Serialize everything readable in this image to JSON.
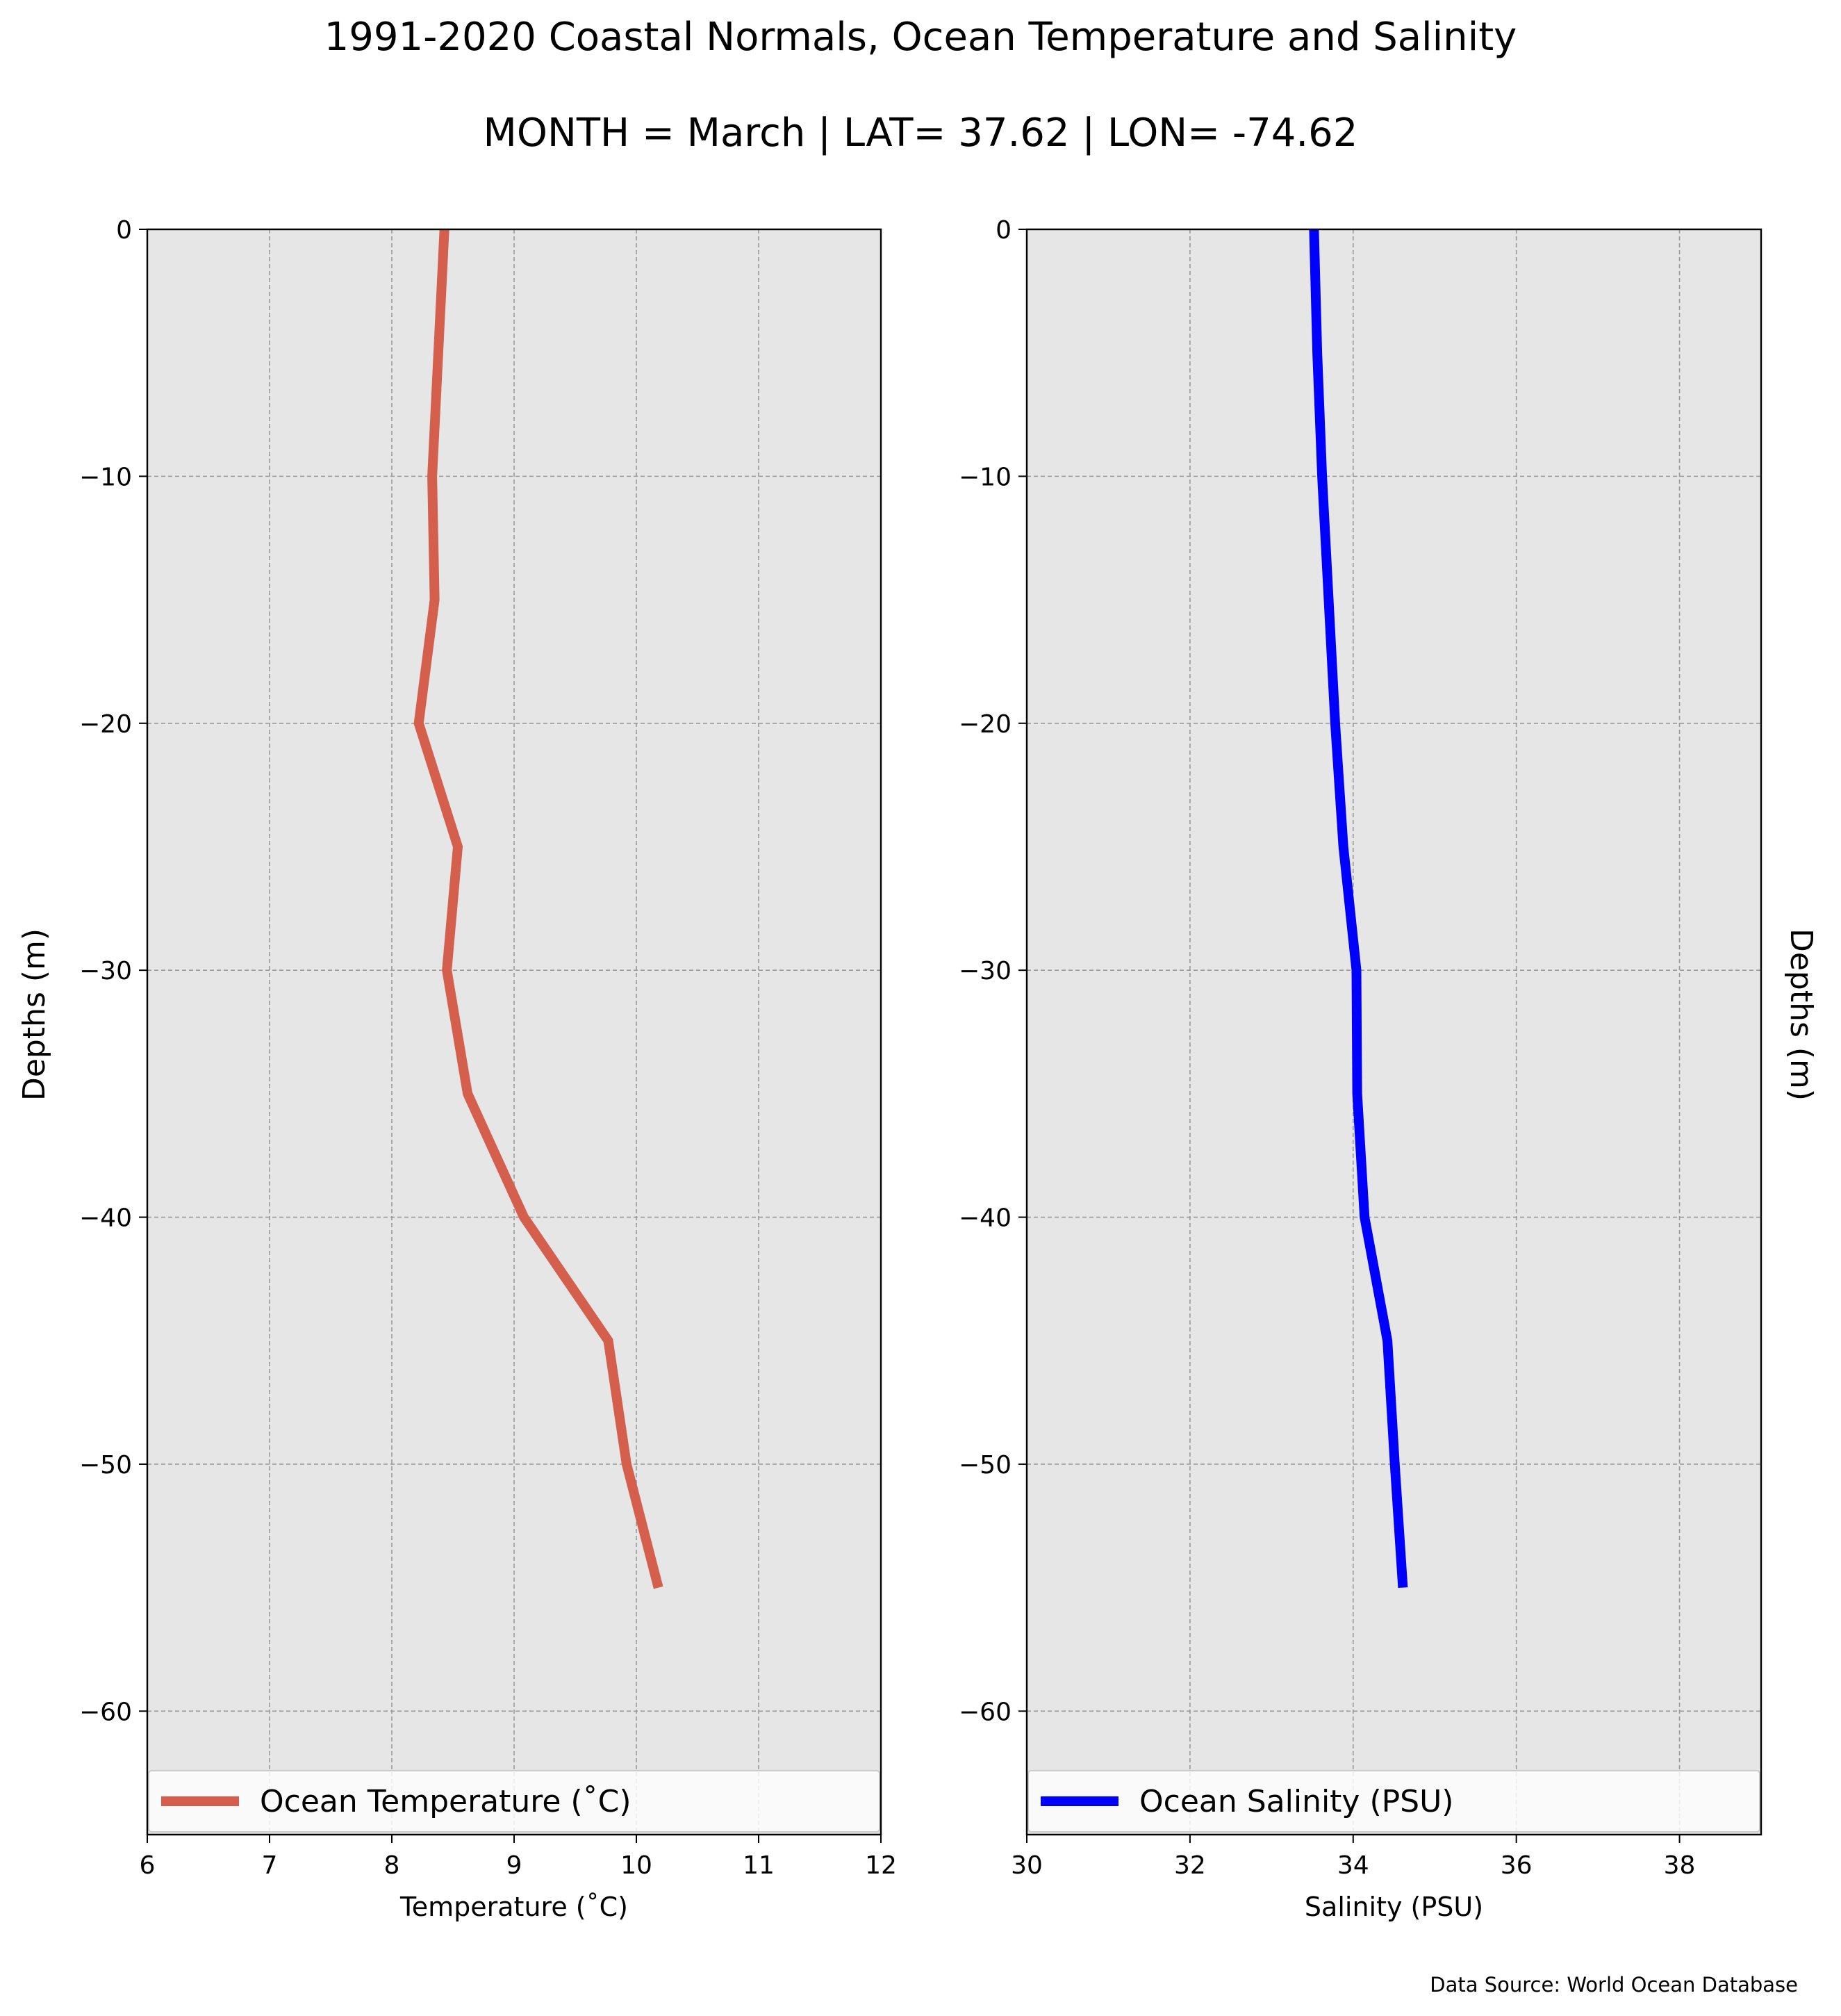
{
  "title": "1991-2020 Coastal Normals, Ocean Temperature and Salinity",
  "subtitle": "MONTH = March | LAT= 37.62 | LON= -74.62",
  "source": "Data Source: World Ocean Database",
  "colors": {
    "background": "#ffffff",
    "panel": "#e6e6e6",
    "grid": "#999999",
    "temperature": "#d45f4d",
    "salinity": "#0000ff"
  },
  "chart_data": [
    {
      "type": "line",
      "title": "",
      "xlabel": "Temperature ($^\\circ$C)",
      "ylabel": "Depths (m)",
      "xlim": [
        6,
        12
      ],
      "ylim": [
        -65,
        0
      ],
      "xticks": [
        6,
        7,
        8,
        9,
        10,
        11,
        12
      ],
      "yticks": [
        0,
        -10,
        -20,
        -30,
        -40,
        -50,
        -60
      ],
      "xtick_labels": [
        "6",
        "7",
        "8",
        "9",
        "10",
        "11",
        "12"
      ],
      "ytick_labels": [
        "0",
        "−10",
        "−20",
        "−30",
        "−40",
        "−50",
        "−60"
      ],
      "grid": true,
      "legend_position": "bottom",
      "series": [
        {
          "name": "Ocean Temperature ($^\\circ$C)",
          "color": "#d45f4d",
          "x": [
            8.43,
            8.38,
            8.33,
            8.35,
            8.22,
            8.54,
            8.45,
            8.62,
            9.08,
            9.77,
            9.92,
            10.18
          ],
          "y": [
            0,
            -5,
            -10,
            -15,
            -20,
            -25,
            -30,
            -35,
            -40,
            -45,
            -50,
            -55
          ]
        }
      ]
    },
    {
      "type": "line",
      "title": "",
      "xlabel": "Salinity (PSU)",
      "ylabel": "Depths (m)",
      "xlim": [
        30,
        39
      ],
      "ylim": [
        -65,
        0
      ],
      "xticks": [
        30,
        32,
        34,
        36,
        38
      ],
      "yticks": [
        0,
        -10,
        -20,
        -30,
        -40,
        -50,
        -60
      ],
      "xtick_labels": [
        "30",
        "32",
        "34",
        "36",
        "38"
      ],
      "ytick_labels": [
        "0",
        "−10",
        "−20",
        "−30",
        "−40",
        "−50",
        "−60"
      ],
      "grid": true,
      "legend_position": "bottom",
      "series": [
        {
          "name": "Ocean Salinity (PSU)",
          "color": "#0000ff",
          "x": [
            33.52,
            33.56,
            33.62,
            33.7,
            33.78,
            33.88,
            34.04,
            34.05,
            34.14,
            34.42,
            34.51,
            34.61
          ],
          "y": [
            0,
            -5,
            -10,
            -15,
            -20,
            -25,
            -30,
            -35,
            -40,
            -45,
            -50,
            -55
          ]
        }
      ]
    }
  ]
}
